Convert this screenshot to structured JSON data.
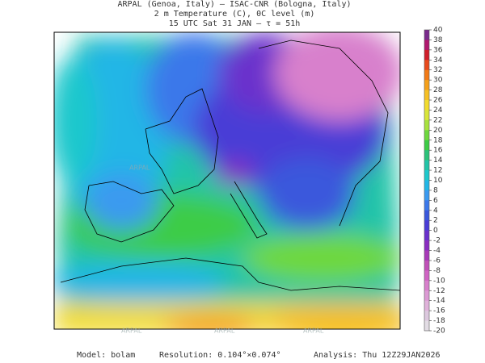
{
  "header": {
    "line1": "ARPAL (Genoa, Italy)  —  ISAC-CNR (Bologna, Italy)",
    "line2": "2 m Temperature (C), 0C level (m)",
    "line3": "15 UTC Sat 31 JAN  —  τ = 51h"
  },
  "colorbar": {
    "ticks": [
      40,
      38,
      36,
      34,
      32,
      30,
      28,
      26,
      24,
      22,
      20,
      18,
      16,
      14,
      12,
      10,
      8,
      6,
      4,
      2,
      0,
      -2,
      -4,
      -6,
      -8,
      -10,
      -12,
      -14,
      -16,
      -18,
      -20
    ],
    "colors": [
      "#7a2a8c",
      "#b0186e",
      "#d01e2a",
      "#e84a1c",
      "#f27a16",
      "#f5a01a",
      "#f6c024",
      "#f2dc2e",
      "#d8e63a",
      "#a8e23e",
      "#6ed83e",
      "#3ccc46",
      "#2cc27a",
      "#22c4a8",
      "#1ec8cc",
      "#22b6e6",
      "#3a9af0",
      "#3c78ea",
      "#3a58dc",
      "#4a3cd6",
      "#6a30cc",
      "#8a2cc0",
      "#a83ab8",
      "#c050b8",
      "#d064c4",
      "#d880cc",
      "#dc9ad4",
      "#e0b2da",
      "#dcc8de",
      "#e2dce4"
    ]
  },
  "watermark": "ARPAL",
  "footer": {
    "model": "Model: bolam",
    "resolution": "Resolution: 0.104°×0.074°",
    "analysis": "Analysis: Thu 12Z29JAN2026"
  }
}
